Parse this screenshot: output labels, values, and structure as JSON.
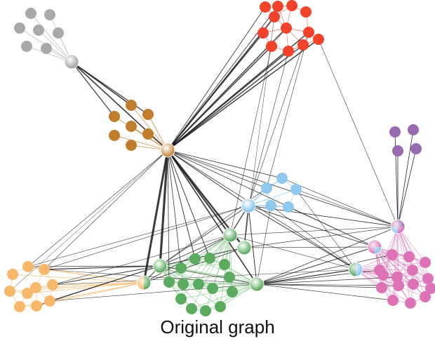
{
  "caption": "Original graph",
  "colors": {
    "gray": "#a9a9a9",
    "brown": "#c07e2d",
    "red": "#f2432a",
    "blue": "#8ec8ee",
    "purple": "#9a6ab0",
    "green": "#5aab5d",
    "orange": "#f7b86b",
    "pink": "#dd73b6"
  },
  "clusters": [
    "gray",
    "brown",
    "red",
    "blue",
    "purple",
    "green",
    "orange",
    "pink"
  ],
  "hubs": [
    {
      "id": "hub-gray",
      "cluster": "gray"
    },
    {
      "id": "hub-brown",
      "cluster": "brown"
    },
    {
      "id": "hub-blue",
      "cluster": "blue"
    },
    {
      "id": "hub-purple-multi",
      "cluster": "purple"
    },
    {
      "id": "hub-pink-multi",
      "cluster": "pink"
    },
    {
      "id": "hub-blue-green",
      "cluster": "blue"
    },
    {
      "id": "hub-green-1",
      "cluster": "green"
    },
    {
      "id": "hub-green-2",
      "cluster": "green"
    },
    {
      "id": "hub-green-3",
      "cluster": "green"
    },
    {
      "id": "hub-green-4",
      "cluster": "green"
    },
    {
      "id": "hub-orange-green",
      "cluster": "orange"
    }
  ]
}
